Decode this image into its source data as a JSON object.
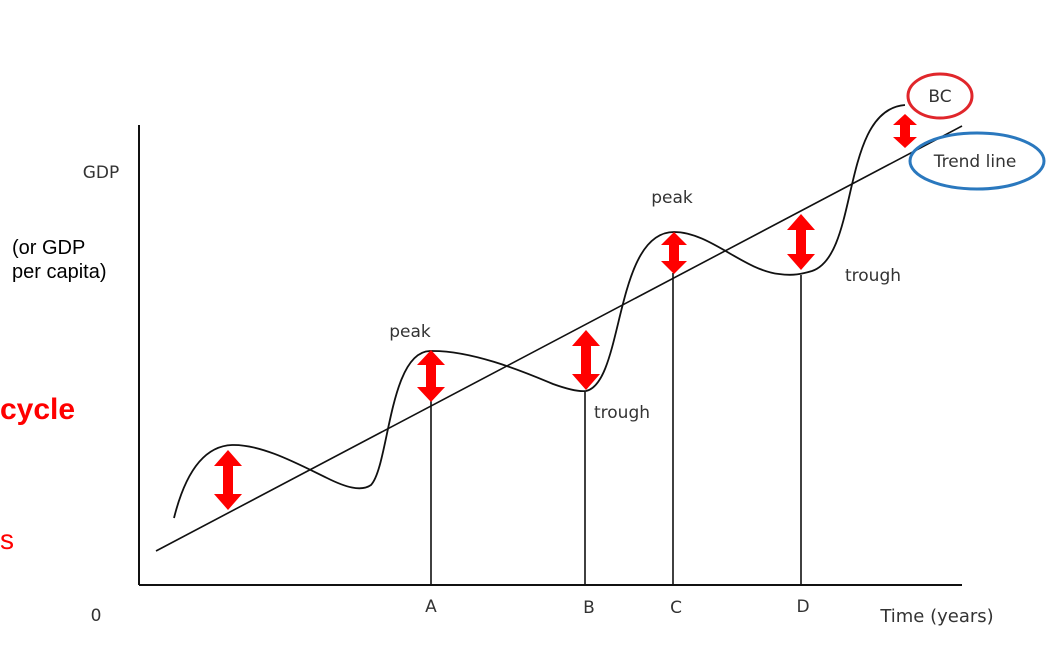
{
  "chart_data": {
    "type": "line",
    "ylabel": "GDP",
    "ylabel_note_line1": "(or GDP",
    "ylabel_note_line2": "per capita)",
    "xlabel": "Time (years)",
    "origin_label": "0",
    "x_ticks": [
      "A",
      "B",
      "C",
      "D"
    ],
    "series": [
      {
        "name": "BC"
      },
      {
        "name": "Trend line"
      }
    ],
    "annotations": {
      "peak_1": "peak",
      "peak_2": "peak",
      "trough_1": "trough",
      "trough_2": "trough"
    },
    "colors": {
      "arrows": "#ff0000",
      "bc_circle": "#e0262b",
      "trend_circle": "#2a78be",
      "lines": "#111111"
    }
  },
  "side_text": {
    "cycle": "cycle",
    "s_fragment": "s"
  }
}
